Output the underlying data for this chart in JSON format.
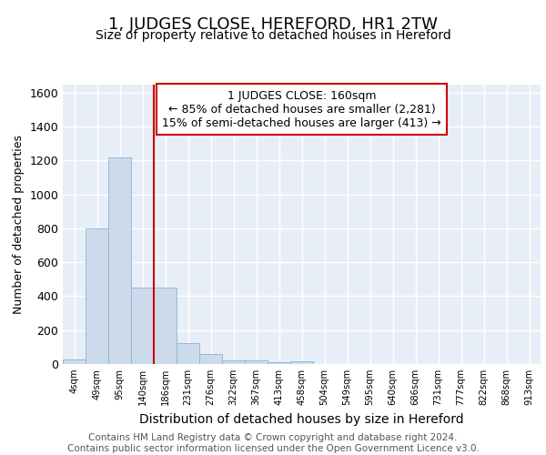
{
  "title": "1, JUDGES CLOSE, HEREFORD, HR1 2TW",
  "subtitle": "Size of property relative to detached houses in Hereford",
  "xlabel": "Distribution of detached houses by size in Hereford",
  "ylabel": "Number of detached properties",
  "bar_labels": [
    "4sqm",
    "49sqm",
    "95sqm",
    "140sqm",
    "186sqm",
    "231sqm",
    "276sqm",
    "322sqm",
    "367sqm",
    "413sqm",
    "458sqm",
    "504sqm",
    "549sqm",
    "595sqm",
    "640sqm",
    "686sqm",
    "731sqm",
    "777sqm",
    "822sqm",
    "868sqm",
    "913sqm"
  ],
  "bar_heights": [
    25,
    800,
    1220,
    450,
    450,
    125,
    60,
    20,
    20,
    10,
    15,
    0,
    0,
    0,
    0,
    0,
    0,
    0,
    0,
    0,
    0
  ],
  "bar_color": "#ccdaeb",
  "bar_edge_color": "#8ab4d4",
  "red_line_x": 3.5,
  "red_line_color": "#cc0000",
  "annotation_text": "1 JUDGES CLOSE: 160sqm\n← 85% of detached houses are smaller (2,281)\n15% of semi-detached houses are larger (413) →",
  "annotation_box_color": "white",
  "annotation_box_edge": "#cc0000",
  "ylim": [
    0,
    1650
  ],
  "yticks": [
    0,
    200,
    400,
    600,
    800,
    1000,
    1200,
    1400,
    1600
  ],
  "background_color": "#e8eef8",
  "grid_color": "#ffffff",
  "footer_text": "Contains HM Land Registry data © Crown copyright and database right 2024.\nContains public sector information licensed under the Open Government Licence v3.0.",
  "title_fontsize": 13,
  "subtitle_fontsize": 10,
  "ylabel_fontsize": 9,
  "xlabel_fontsize": 10
}
